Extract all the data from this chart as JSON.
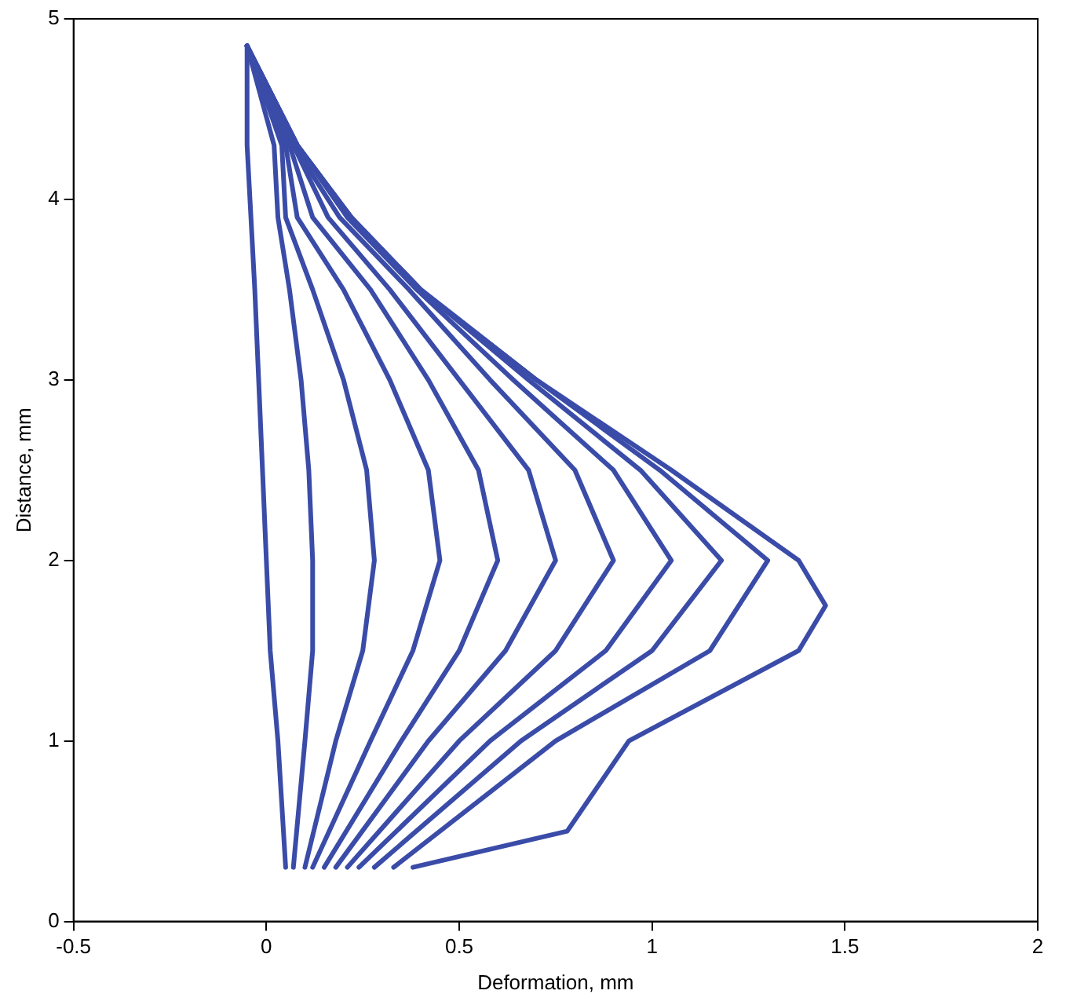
{
  "chart_data": {
    "type": "line",
    "xlabel": "Deformation, mm",
    "ylabel": "Distance, mm",
    "xlim": [
      -0.5,
      2
    ],
    "ylim": [
      0,
      5
    ],
    "xticks": [
      -0.5,
      0,
      0.5,
      1,
      1.5,
      2
    ],
    "yticks": [
      0,
      1,
      2,
      3,
      4,
      5
    ],
    "marker": "none",
    "line_style": "solid",
    "grid": false,
    "legend": false,
    "series": [
      {
        "color": "#3a4ca8",
        "x": [
          0.05,
          0.03,
          0.01,
          0.0,
          -0.01,
          -0.02,
          -0.03,
          -0.04,
          -0.05,
          -0.05
        ],
        "values": [
          0.3,
          1,
          1.5,
          2,
          2.5,
          3,
          3.5,
          3.9,
          4.3,
          4.85
        ]
      },
      {
        "color": "#3a4ca8",
        "x": [
          0.07,
          0.1,
          0.12,
          0.12,
          0.11,
          0.09,
          0.06,
          0.03,
          0.02,
          -0.05
        ],
        "values": [
          0.3,
          1,
          1.5,
          2,
          2.5,
          3,
          3.5,
          3.9,
          4.3,
          4.85
        ]
      },
      {
        "color": "#3a4ca8",
        "x": [
          0.1,
          0.18,
          0.25,
          0.28,
          0.26,
          0.2,
          0.12,
          0.05,
          0.04,
          -0.05
        ],
        "values": [
          0.3,
          1,
          1.5,
          2,
          2.5,
          3,
          3.5,
          3.9,
          4.3,
          4.85
        ]
      },
      {
        "color": "#3a4ca8",
        "x": [
          0.12,
          0.27,
          0.38,
          0.45,
          0.42,
          0.32,
          0.2,
          0.08,
          0.05,
          -0.05
        ],
        "values": [
          0.3,
          1,
          1.5,
          2,
          2.5,
          3,
          3.5,
          3.9,
          4.3,
          4.85
        ]
      },
      {
        "color": "#3a4ca8",
        "x": [
          0.15,
          0.35,
          0.5,
          0.6,
          0.55,
          0.42,
          0.27,
          0.12,
          0.06,
          -0.05
        ],
        "values": [
          0.3,
          1,
          1.5,
          2,
          2.5,
          3,
          3.5,
          3.9,
          4.3,
          4.85
        ]
      },
      {
        "color": "#3a4ca8",
        "x": [
          0.18,
          0.42,
          0.62,
          0.75,
          0.68,
          0.5,
          0.32,
          0.16,
          0.07,
          -0.05
        ],
        "values": [
          0.3,
          1,
          1.5,
          2,
          2.5,
          3,
          3.5,
          3.9,
          4.3,
          4.85
        ]
      },
      {
        "color": "#3a4ca8",
        "x": [
          0.21,
          0.5,
          0.75,
          0.9,
          0.8,
          0.58,
          0.37,
          0.19,
          0.07,
          -0.05
        ],
        "values": [
          0.3,
          1,
          1.5,
          2,
          2.5,
          3,
          3.5,
          3.9,
          4.3,
          4.85
        ]
      },
      {
        "color": "#3a4ca8",
        "x": [
          0.24,
          0.58,
          0.88,
          1.05,
          0.9,
          0.64,
          0.39,
          0.21,
          0.08,
          -0.05
        ],
        "values": [
          0.3,
          1,
          1.5,
          2,
          2.5,
          3,
          3.5,
          3.9,
          4.3,
          4.85
        ]
      },
      {
        "color": "#3a4ca8",
        "x": [
          0.28,
          0.66,
          1.0,
          1.18,
          0.97,
          0.68,
          0.4,
          0.22,
          0.08,
          -0.05
        ],
        "values": [
          0.3,
          1,
          1.5,
          2,
          2.5,
          3,
          3.5,
          3.9,
          4.3,
          4.85
        ]
      },
      {
        "color": "#3a4ca8",
        "x": [
          0.33,
          0.75,
          1.15,
          1.3,
          1.02,
          0.7,
          0.4,
          0.22,
          0.08,
          -0.05
        ],
        "values": [
          0.3,
          1,
          1.5,
          2,
          2.5,
          3,
          3.5,
          3.9,
          4.3,
          4.85
        ]
      },
      {
        "color": "#3a4ca8",
        "x": [
          0.38,
          0.78,
          0.94,
          1.38,
          1.45,
          1.38,
          1.05,
          0.7,
          0.4,
          0.22,
          0.08,
          -0.05
        ],
        "values": [
          0.3,
          0.5,
          1,
          1.5,
          1.75,
          2,
          2.5,
          3,
          3.5,
          3.9,
          4.3,
          4.85
        ]
      }
    ]
  }
}
